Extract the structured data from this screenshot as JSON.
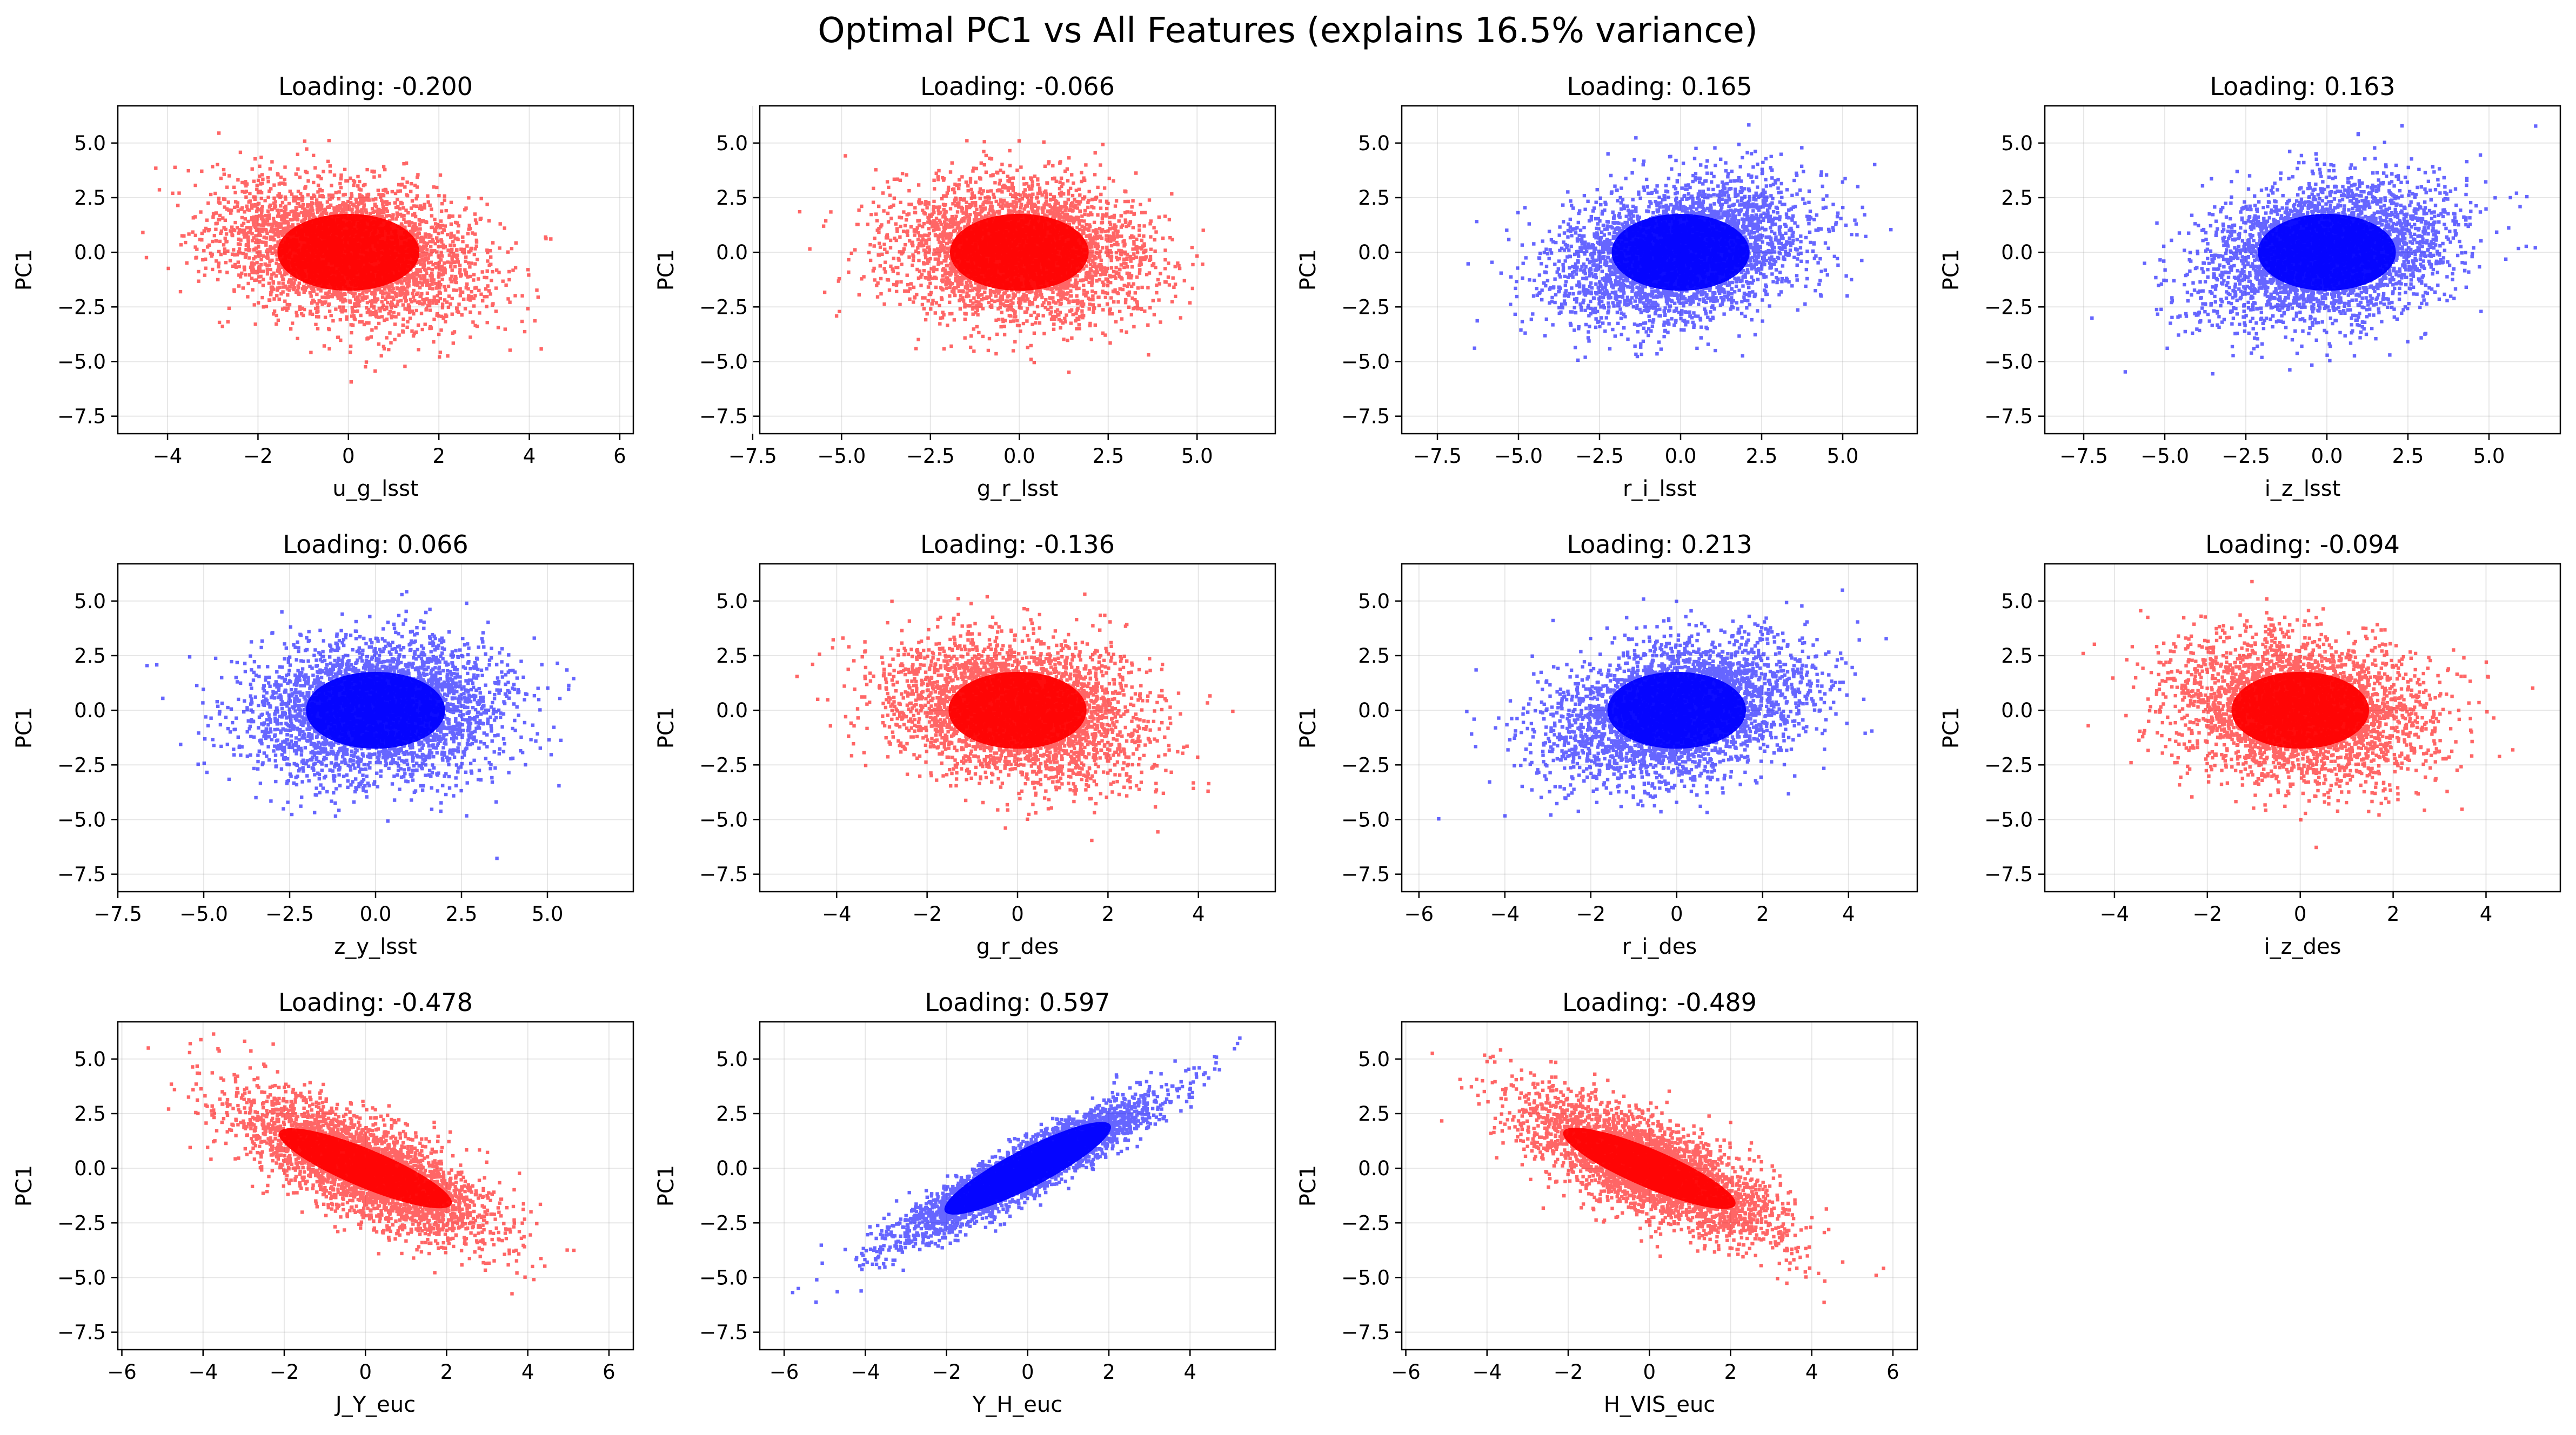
{
  "chart_data": {
    "suptitle": "Optimal PC1 vs All Features (explains 16.5% variance)",
    "type": "scatter",
    "grid": true,
    "legend": "none",
    "subplots": [
      {
        "title": "Loading: -0.200",
        "xlabel": "u_g_lsst",
        "ylabel": "PC1",
        "loading": -0.2,
        "color": "#ff0000",
        "xlim": [
          -5.1,
          6.3
        ],
        "xticks": [
          -4,
          -2,
          0,
          2,
          4,
          6
        ],
        "xtick_labels": [
          "−4",
          "−2",
          "0",
          "2",
          "4",
          "6"
        ],
        "xrange": [
          -4.8,
          5.9
        ]
      },
      {
        "title": "Loading: -0.066",
        "xlabel": "g_r_lsst",
        "ylabel": "PC1",
        "loading": -0.066,
        "color": "#ff0000",
        "xlim": [
          -7.3,
          7.2
        ],
        "xticks": [
          -7.5,
          -5.0,
          -2.5,
          0.0,
          2.5,
          5.0
        ],
        "xtick_labels": [
          "−7.5",
          "−5.0",
          "−2.5",
          "0.0",
          "2.5",
          "5.0"
        ],
        "xrange": [
          -6.7,
          6.6
        ]
      },
      {
        "title": "Loading: 0.165",
        "xlabel": "r_i_lsst",
        "ylabel": "PC1",
        "loading": 0.165,
        "color": "#0000ff",
        "xlim": [
          -8.6,
          7.3
        ],
        "xticks": [
          -7.5,
          -5.0,
          -2.5,
          0.0,
          2.5,
          5.0
        ],
        "xtick_labels": [
          "−7.5",
          "−5.0",
          "−2.5",
          "0.0",
          "2.5",
          "5.0"
        ],
        "xrange": [
          -7.9,
          6.6
        ]
      },
      {
        "title": "Loading: 0.163",
        "xlabel": "i_z_lsst",
        "ylabel": "PC1",
        "loading": 0.163,
        "color": "#0000ff",
        "xlim": [
          -8.7,
          7.2
        ],
        "xticks": [
          -7.5,
          -5.0,
          -2.5,
          0.0,
          2.5,
          5.0
        ],
        "xtick_labels": [
          "−7.5",
          "−5.0",
          "−2.5",
          "0.0",
          "2.5",
          "5.0"
        ],
        "xrange": [
          -8.0,
          6.5
        ]
      },
      {
        "title": "Loading: 0.066",
        "xlabel": "z_y_lsst",
        "ylabel": "PC1",
        "loading": 0.066,
        "color": "#0000ff",
        "xlim": [
          -7.5,
          7.5
        ],
        "xticks": [
          -7.5,
          -5.0,
          -2.5,
          0.0,
          2.5,
          5.0
        ],
        "xtick_labels": [
          "−7.5",
          "−5.0",
          "−2.5",
          "0.0",
          "2.5",
          "5.0"
        ],
        "xrange": [
          -6.9,
          6.9
        ]
      },
      {
        "title": "Loading: -0.136",
        "xlabel": "g_r_des",
        "ylabel": "PC1",
        "loading": -0.136,
        "color": "#ff0000",
        "xlim": [
          -5.7,
          5.7
        ],
        "xticks": [
          -4,
          -2,
          0,
          2,
          4
        ],
        "xtick_labels": [
          "−4",
          "−2",
          "0",
          "2",
          "4"
        ],
        "xrange": [
          -5.2,
          5.2
        ]
      },
      {
        "title": "Loading: 0.213",
        "xlabel": "r_i_des",
        "ylabel": "PC1",
        "loading": 0.213,
        "color": "#0000ff",
        "xlim": [
          -6.4,
          5.6
        ],
        "xticks": [
          -6,
          -4,
          -2,
          0,
          2,
          4
        ],
        "xtick_labels": [
          "−6",
          "−4",
          "−2",
          "0",
          "2",
          "4"
        ],
        "xrange": [
          -5.9,
          5.1
        ]
      },
      {
        "title": "Loading: -0.094",
        "xlabel": "i_z_des",
        "ylabel": "PC1",
        "loading": -0.094,
        "color": "#ff0000",
        "xlim": [
          -5.5,
          5.6
        ],
        "xticks": [
          -4,
          -2,
          0,
          2,
          4
        ],
        "xtick_labels": [
          "−4",
          "−2",
          "0",
          "2",
          "4"
        ],
        "xrange": [
          -5.0,
          5.1
        ]
      },
      {
        "title": "Loading: -0.478",
        "xlabel": "J_Y_euc",
        "ylabel": "PC1",
        "loading": -0.478,
        "color": "#ff0000",
        "xlim": [
          -6.1,
          6.6
        ],
        "xticks": [
          -6,
          -4,
          -2,
          0,
          2,
          4,
          6
        ],
        "xtick_labels": [
          "−6",
          "−4",
          "−2",
          "0",
          "2",
          "4",
          "6"
        ],
        "xrange": [
          -5.5,
          6.0
        ]
      },
      {
        "title": "Loading: 0.597",
        "xlabel": "Y_H_euc",
        "ylabel": "PC1",
        "loading": 0.597,
        "color": "#0000ff",
        "xlim": [
          -6.6,
          6.1
        ],
        "xticks": [
          -6,
          -4,
          -2,
          0,
          2,
          4
        ],
        "xtick_labels": [
          "−6",
          "−4",
          "−2",
          "0",
          "2",
          "4"
        ],
        "xrange": [
          -6.0,
          5.5
        ]
      },
      {
        "title": "Loading: -0.489",
        "xlabel": "H_VIS_euc",
        "ylabel": "PC1",
        "loading": -0.489,
        "color": "#ff0000",
        "xlim": [
          -6.1,
          6.6
        ],
        "xticks": [
          -6,
          -4,
          -2,
          0,
          2,
          4,
          6
        ],
        "xtick_labels": [
          "−6",
          "−4",
          "−2",
          "0",
          "2",
          "4",
          "6"
        ],
        "xrange": [
          -5.5,
          6.0
        ]
      }
    ],
    "ylim": [
      -8.3,
      6.7
    ],
    "yticks": [
      -7.5,
      -5.0,
      -2.5,
      0.0,
      2.5,
      5.0
    ],
    "ytick_labels": [
      "−7.5",
      "−5.0",
      "−2.5",
      "0.0",
      "2.5",
      "5.0"
    ],
    "pc1_range": [
      -7.9,
      6.2
    ]
  }
}
